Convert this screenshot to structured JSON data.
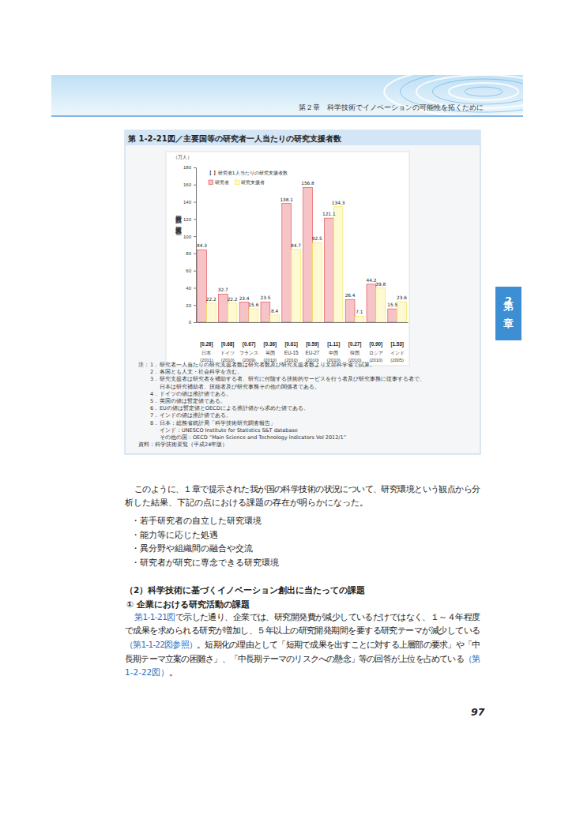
{
  "header": {
    "chapter_title": "第２章　科学技術でイノベーションの可能性を拓くために",
    "side_tab": "第2章"
  },
  "chart_data": {
    "type": "bar",
    "title": "第 1-2-21図／主要国等の研究者一人当たりの研究支援者数",
    "y_unit": "（万人）",
    "ylabel": "研究者数及び研究支援者数",
    "legend_title": "【 】研究者1人当たりの研究支援者数",
    "legend": "top-left",
    "categories": [
      "日本",
      "ドイツ",
      "フランス",
      "英国",
      "EU-15",
      "EU-27",
      "中国",
      "韓国",
      "ロシア",
      "インド"
    ],
    "category_years": [
      "(2011)",
      "(2010)",
      "(2009)",
      "(2010)",
      "(2010)",
      "(2010)",
      "(2010)",
      "(2010)",
      "(2010)",
      "(2005)"
    ],
    "ratio_labels": [
      "[0.26]",
      "[0.68]",
      "[0.67]",
      "[0.36]",
      "[0.61]",
      "[0.59]",
      "[1.11]",
      "[0.27]",
      "[0.90]",
      "[1.53]"
    ],
    "series": [
      {
        "name": "研究者",
        "color": "#f6c4c6",
        "values": [
          84.3,
          32.7,
          23.4,
          23.5,
          138.1,
          156.8,
          121.1,
          26.4,
          44.2,
          15.5
        ]
      },
      {
        "name": "研究支援者",
        "color": "#fdf9d2",
        "values": [
          22.2,
          22.2,
          15.6,
          8.4,
          84.7,
          92.5,
          134.3,
          7.1,
          39.8,
          23.6
        ]
      }
    ],
    "ylim": [
      0,
      180
    ],
    "yticks": [
      0,
      20,
      40,
      60,
      80,
      100,
      120,
      140,
      160,
      180
    ],
    "data_labels": true,
    "grid": false
  },
  "figure_notes": {
    "label": "注：",
    "items": [
      {
        "no": "1．",
        "lines": [
          "研究者一人当たりの研究支援者数は研究者数及び研究支援者数より文部科学省で試算。"
        ]
      },
      {
        "no": "2．",
        "lines": [
          "各国とも人文・社会科学を含む。"
        ]
      },
      {
        "no": "3．",
        "lines": [
          "研究支援者は研究者を補助する者、研究に付随する技術的サービスを行う者及び研究事務に従事する者で、",
          "日本は研究補助者、技能者及び研究事務その他の関係者である。"
        ]
      },
      {
        "no": "4．",
        "lines": [
          "ドイツの値は推計値である。"
        ]
      },
      {
        "no": "5．",
        "lines": [
          "英国の値は暫定値である。"
        ]
      },
      {
        "no": "6．",
        "lines": [
          "EUの値は暫定値とOECDによる推計値から求めた値である。"
        ]
      },
      {
        "no": "7．",
        "lines": [
          "インドの値は推計値である。"
        ]
      },
      {
        "no": "8．",
        "lines": [
          "日本：総務省統計局「科学技術研究調査報告」",
          "インド：UNESCO Institute for Statistics S&T database",
          "その他の国：OECD “Main Science and Technology Indicators Vol 2012/1”"
        ]
      }
    ],
    "source": "資料：科学技術要覧（平成24年版）"
  },
  "body": {
    "paragraph_1": [
      "このように、１章で提示された我が国の科学技術の状況について、研究環境という観点から分",
      "析した結果、下記の点における課題の存在が明らかになった。"
    ],
    "bullets": [
      "・若手研究者の自立した研究環境",
      "・能力等に応じた処遇",
      "・異分野や組織間の融合や交流",
      "・研究者が研究に専念できる研究環境"
    ],
    "heading_1": "（2）科学技術に基づくイノベーション創出に当たっての課題",
    "heading_2": "① 企業における研究活動の課題",
    "paragraph_2": [
      [
        {
          "text": "第1-1-21図",
          "ref": true
        },
        {
          "text": "で示した通り、企業では、研究開発費が減少しているだけではなく、１～４年程度",
          "ref": false
        }
      ],
      [
        {
          "text": "で成果を求められる研究が増加し、５年以上の研究開発期間を要する研究テーマが減少している",
          "ref": false
        }
      ],
      [
        {
          "text": "（第1-1-22図参照）",
          "ref": true
        },
        {
          "text": "。短期化の理由として「短期で成果を出すことに対する上層部の要求」や「中",
          "ref": false
        }
      ],
      [
        {
          "text": "長期テーマ立案の困難さ」、「中長期テーマのリスクへの懸念」等の回答が上位を占めている",
          "ref": false
        },
        {
          "text": "（第",
          "ref": true
        }
      ],
      [
        {
          "text": "1-2-22図）",
          "ref": true
        },
        {
          "text": "。",
          "ref": false
        }
      ]
    ]
  },
  "page_number": 97
}
